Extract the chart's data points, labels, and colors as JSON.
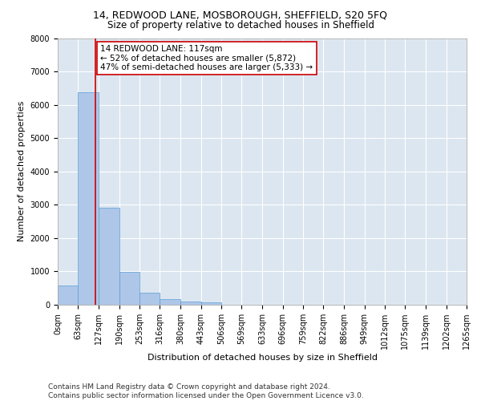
{
  "title_line1": "14, REDWOOD LANE, MOSBOROUGH, SHEFFIELD, S20 5FQ",
  "title_line2": "Size of property relative to detached houses in Sheffield",
  "xlabel": "Distribution of detached houses by size in Sheffield",
  "ylabel": "Number of detached properties",
  "footer_line1": "Contains HM Land Registry data © Crown copyright and database right 2024.",
  "footer_line2": "Contains public sector information licensed under the Open Government Licence v3.0.",
  "annotation_line1": "14 REDWOOD LANE: 117sqm",
  "annotation_line2": "← 52% of detached houses are smaller (5,872)",
  "annotation_line3": "47% of semi-detached houses are larger (5,333) →",
  "property_size": 117,
  "bin_edges": [
    0,
    63,
    127,
    190,
    253,
    316,
    380,
    443,
    506,
    569,
    633,
    696,
    759,
    822,
    886,
    949,
    1012,
    1075,
    1139,
    1202,
    1265
  ],
  "bin_labels": [
    "0sqm",
    "63sqm",
    "127sqm",
    "190sqm",
    "253sqm",
    "316sqm",
    "380sqm",
    "443sqm",
    "506sqm",
    "569sqm",
    "633sqm",
    "696sqm",
    "759sqm",
    "822sqm",
    "886sqm",
    "949sqm",
    "1012sqm",
    "1075sqm",
    "1139sqm",
    "1202sqm",
    "1265sqm"
  ],
  "bar_heights": [
    580,
    6380,
    2900,
    975,
    360,
    160,
    95,
    65,
    0,
    0,
    0,
    0,
    0,
    0,
    0,
    0,
    0,
    0,
    0,
    0
  ],
  "bar_color": "#aec6e8",
  "bar_edge_color": "#5a9fd4",
  "vline_color": "#cc0000",
  "vline_x": 117,
  "ylim": [
    0,
    8000
  ],
  "yticks": [
    0,
    1000,
    2000,
    3000,
    4000,
    5000,
    6000,
    7000,
    8000
  ],
  "background_color": "#ffffff",
  "grid_color": "#dce6f1",
  "annotation_box_color": "#cc0000",
  "title_fontsize": 9,
  "subtitle_fontsize": 8.5,
  "axis_label_fontsize": 8,
  "tick_fontsize": 7,
  "annotation_fontsize": 7.5,
  "footer_fontsize": 6.5
}
